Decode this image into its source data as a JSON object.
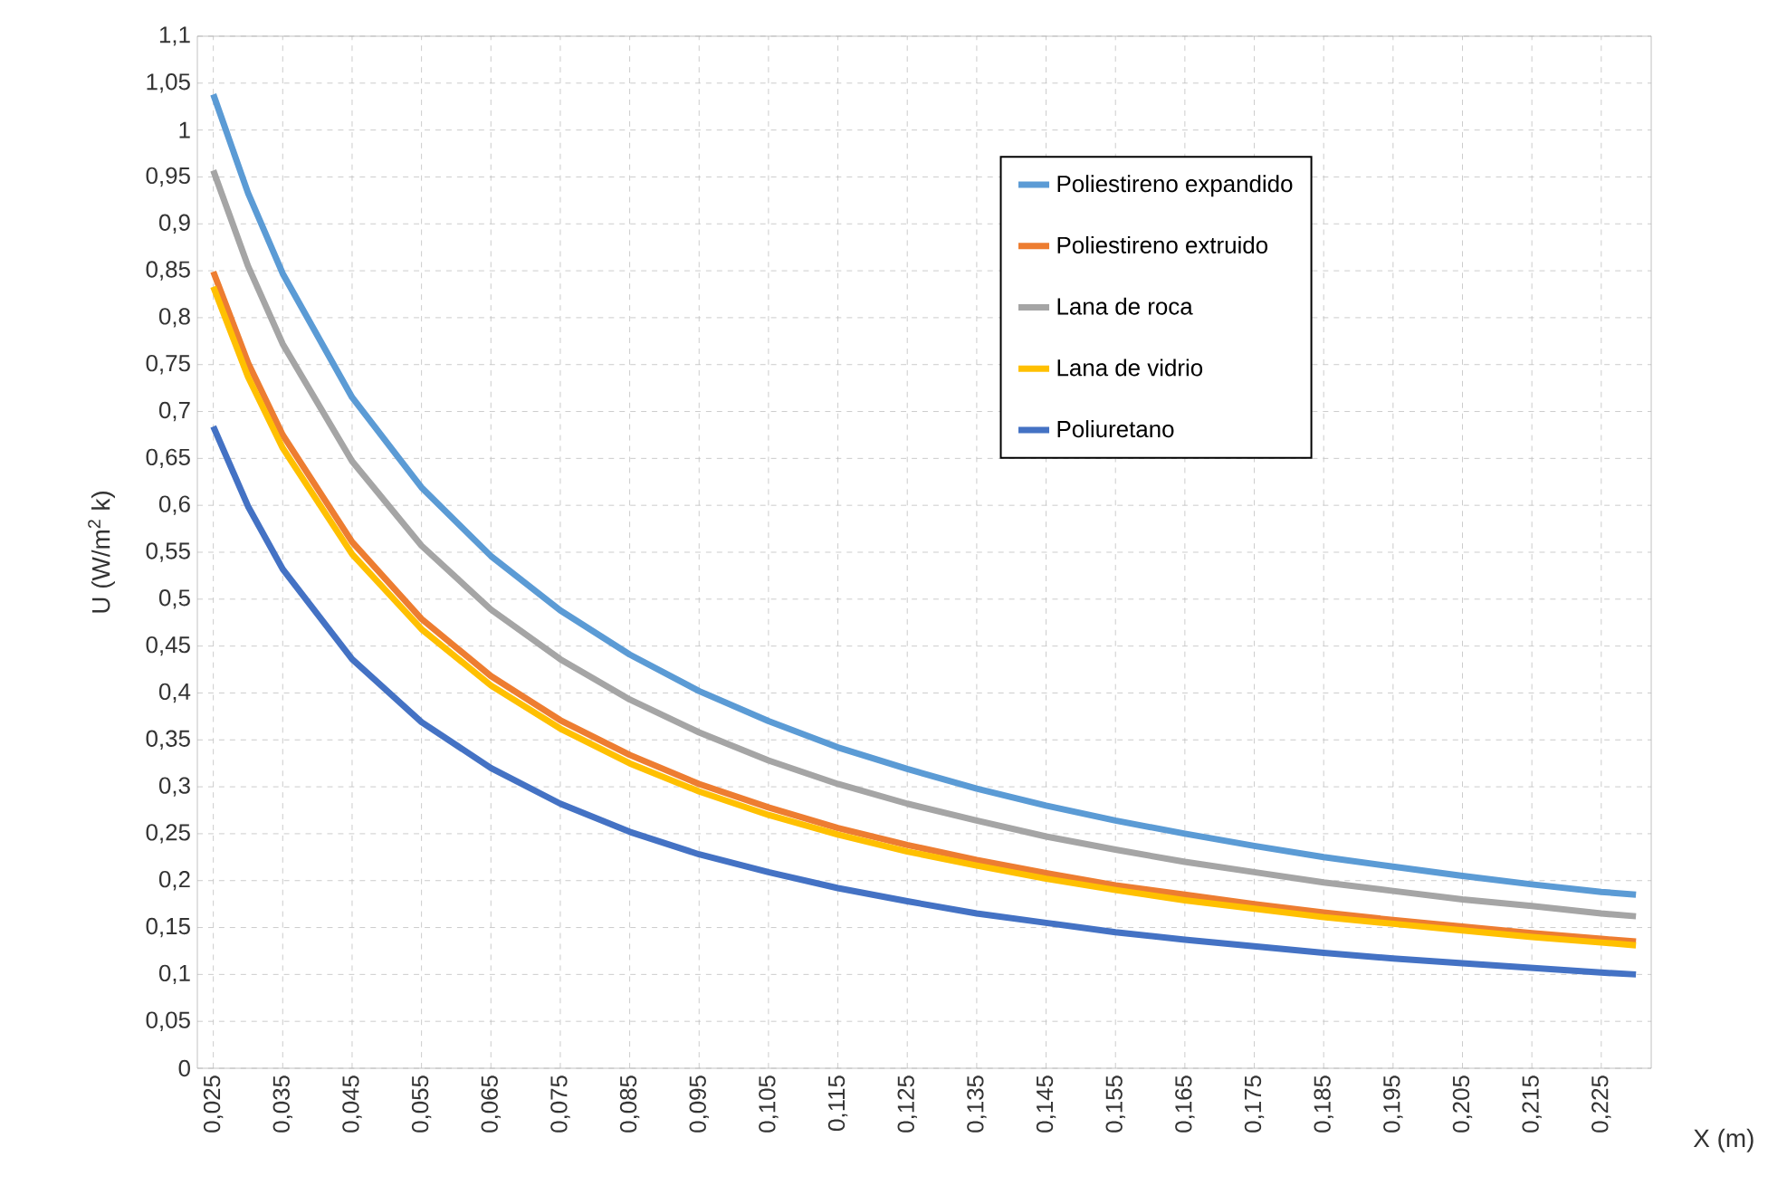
{
  "chart_data": {
    "type": "line",
    "xlabel": "X (m)",
    "ylabel": "U (W/m$^{2}$ k)",
    "x": [
      0.025,
      0.03,
      0.035,
      0.045,
      0.055,
      0.065,
      0.075,
      0.085,
      0.095,
      0.105,
      0.115,
      0.125,
      0.135,
      0.145,
      0.155,
      0.165,
      0.175,
      0.185,
      0.195,
      0.205,
      0.215,
      0.225,
      0.23
    ],
    "series": [
      {
        "name": "Poliestireno expandido",
        "color": "#5b9bd5",
        "values": [
          1.038,
          0.933,
          0.847,
          0.715,
          0.619,
          0.546,
          0.488,
          0.441,
          0.402,
          0.37,
          0.342,
          0.319,
          0.298,
          0.28,
          0.264,
          0.25,
          0.237,
          0.225,
          0.215,
          0.205,
          0.196,
          0.188,
          0.185
        ]
      },
      {
        "name": "Poliestireno extruido",
        "color": "#ed7d31",
        "values": [
          0.849,
          0.752,
          0.675,
          0.561,
          0.479,
          0.418,
          0.371,
          0.334,
          0.303,
          0.278,
          0.256,
          0.238,
          0.222,
          0.208,
          0.195,
          0.185,
          0.175,
          0.166,
          0.158,
          0.151,
          0.144,
          0.138,
          0.135
        ]
      },
      {
        "name": "Lana de roca",
        "color": "#a5a5a5",
        "values": [
          0.957,
          0.855,
          0.772,
          0.647,
          0.557,
          0.489,
          0.436,
          0.393,
          0.358,
          0.328,
          0.303,
          0.282,
          0.264,
          0.247,
          0.233,
          0.22,
          0.209,
          0.198,
          0.189,
          0.18,
          0.173,
          0.165,
          0.162
        ]
      },
      {
        "name": "Lana de vidrio",
        "color": "#ffc000",
        "values": [
          0.833,
          0.737,
          0.661,
          0.548,
          0.468,
          0.408,
          0.362,
          0.325,
          0.295,
          0.27,
          0.249,
          0.231,
          0.216,
          0.202,
          0.19,
          0.179,
          0.17,
          0.161,
          0.154,
          0.147,
          0.14,
          0.134,
          0.131
        ]
      },
      {
        "name": "Poliuretano",
        "color": "#4472c4",
        "values": [
          0.684,
          0.599,
          0.532,
          0.436,
          0.369,
          0.32,
          0.282,
          0.252,
          0.228,
          0.209,
          0.192,
          0.178,
          0.165,
          0.155,
          0.145,
          0.137,
          0.13,
          0.123,
          0.117,
          0.112,
          0.107,
          0.102,
          0.1
        ]
      }
    ],
    "xlim": [
      0.0227,
      0.2322
    ],
    "xticks": [
      {
        "value": 0.025,
        "label": "0,025"
      },
      {
        "value": 0.035,
        "label": "0,035"
      },
      {
        "value": 0.045,
        "label": "0,045"
      },
      {
        "value": 0.055,
        "label": "0,055"
      },
      {
        "value": 0.065,
        "label": "0,065"
      },
      {
        "value": 0.075,
        "label": "0,075"
      },
      {
        "value": 0.085,
        "label": "0,085"
      },
      {
        "value": 0.095,
        "label": "0,095"
      },
      {
        "value": 0.105,
        "label": "0,105"
      },
      {
        "value": 0.115,
        "label": "0,115"
      },
      {
        "value": 0.125,
        "label": "0,125"
      },
      {
        "value": 0.135,
        "label": "0,135"
      },
      {
        "value": 0.145,
        "label": "0,145"
      },
      {
        "value": 0.155,
        "label": "0,155"
      },
      {
        "value": 0.165,
        "label": "0,165"
      },
      {
        "value": 0.175,
        "label": "0,175"
      },
      {
        "value": 0.185,
        "label": "0,185"
      },
      {
        "value": 0.195,
        "label": "0,195"
      },
      {
        "value": 0.205,
        "label": "0,205"
      },
      {
        "value": 0.215,
        "label": "0,215"
      },
      {
        "value": 0.225,
        "label": "0,225"
      }
    ],
    "ylim": [
      0,
      1.1
    ],
    "yticks": [
      0,
      {
        "value": 0.05,
        "label": "0,05"
      },
      {
        "value": 0.1,
        "label": "0,1"
      },
      {
        "value": 0.15,
        "label": "0,15"
      },
      {
        "value": 0.2,
        "label": "0,2"
      },
      {
        "value": 0.25,
        "label": "0,25"
      },
      {
        "value": 0.3,
        "label": "0,3"
      },
      {
        "value": 0.35,
        "label": "0,35"
      },
      {
        "value": 0.4,
        "label": "0,4"
      },
      {
        "value": 0.45,
        "label": "0,45"
      },
      {
        "value": 0.5,
        "label": "0,5"
      },
      {
        "value": 0.55,
        "label": "0,55"
      },
      {
        "value": 0.6,
        "label": "0,6"
      },
      {
        "value": 0.65,
        "label": "0,65"
      },
      {
        "value": 0.7,
        "label": "0,7"
      },
      {
        "value": 0.75,
        "label": "0,75"
      },
      {
        "value": 0.8,
        "label": "0,8"
      },
      {
        "value": 0.85,
        "label": "0,85"
      },
      {
        "value": 0.9,
        "label": "0,9"
      },
      {
        "value": 0.95,
        "label": "0,95"
      },
      {
        "value": 1,
        "label": "1"
      },
      {
        "value": 1.05,
        "label": "1,05"
      },
      {
        "value": 1.1,
        "label": "1,1"
      }
    ],
    "grid": true,
    "legend": "top right",
    "marker": "none",
    "line_style": "solid"
  }
}
